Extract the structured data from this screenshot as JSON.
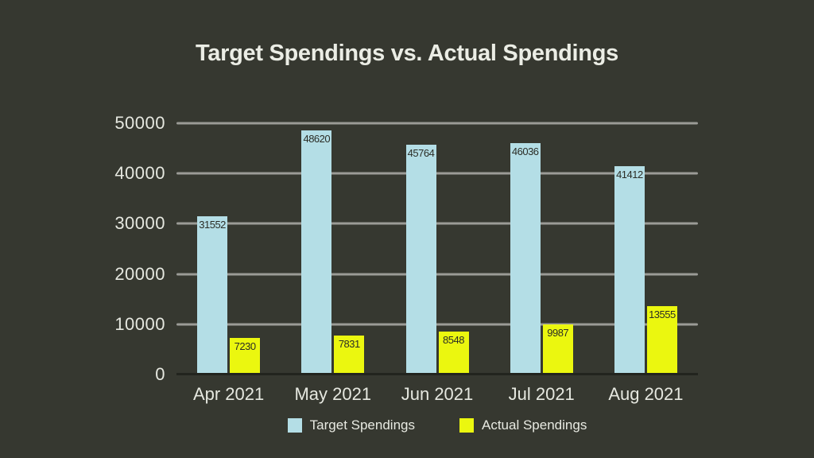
{
  "page": {
    "background_color": "#363830",
    "text_color": "#e6e8e0"
  },
  "chart_data": {
    "type": "bar",
    "title": "Target Spendings vs. Actual Spendings",
    "categories": [
      "Apr 2021",
      "May 2021",
      "Jun 2021",
      "Jul 2021",
      "Aug 2021"
    ],
    "series": [
      {
        "name": "Target Spendings",
        "color": "#b4dee6",
        "values": [
          31552,
          48620,
          45764,
          46036,
          41412
        ]
      },
      {
        "name": "Actual Spendings",
        "color": "#ebf70f",
        "values": [
          7230,
          7831,
          8548,
          9987,
          13555
        ]
      }
    ],
    "xlabel": "",
    "ylabel": "",
    "ylim": [
      0,
      50000
    ],
    "yticks": [
      0,
      10000,
      20000,
      30000,
      40000,
      50000
    ],
    "grid": true,
    "gridline_color": "#9b9b96",
    "baseline_color": "#22241e",
    "bar_value_labels": true,
    "bar_value_label_color": "#2b2d26",
    "legend_position": "bottom"
  }
}
